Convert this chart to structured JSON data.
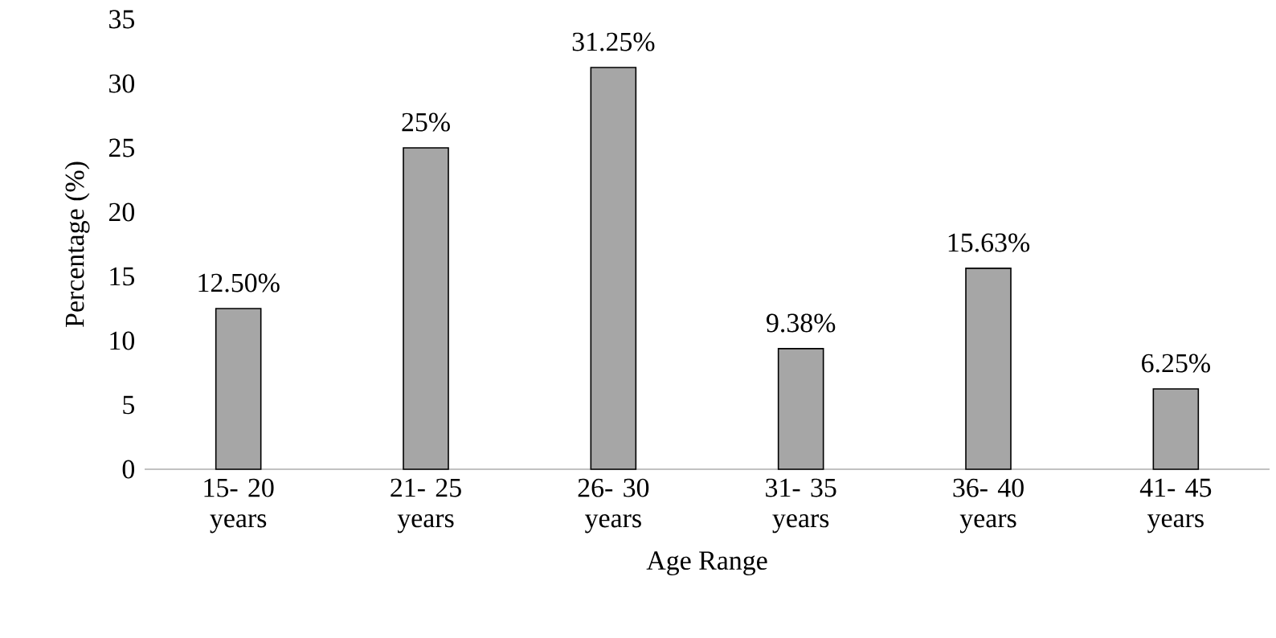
{
  "chart_data": {
    "type": "bar",
    "xlabel": "Age Range",
    "ylabel": "Percentage (%)",
    "categories": [
      "15- 20 years",
      "21- 25 years",
      "26- 30 years",
      "31- 35 years",
      "36- 40 years",
      "41- 45 years"
    ],
    "values": [
      12.5,
      25,
      31.25,
      9.38,
      15.63,
      6.25
    ],
    "value_labels": [
      "12.50%",
      "25%",
      "31.25%",
      "9.38%",
      "15.63%",
      "6.25%"
    ],
    "color": "#a6a6a6",
    "ylim": [
      0,
      35
    ],
    "yticks": [
      0,
      5,
      10,
      15,
      20,
      25,
      30,
      35
    ]
  }
}
